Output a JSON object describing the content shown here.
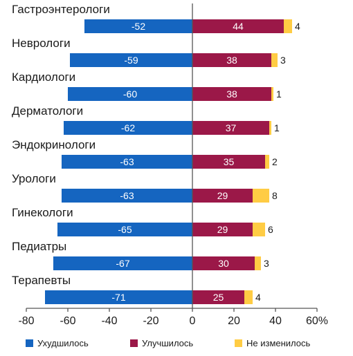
{
  "chart_data": {
    "type": "bar",
    "orientation": "horizontal",
    "stacked": true,
    "categories": [
      "Гастроэнтерологи",
      "Неврологи",
      "Кардиологи",
      "Дерматологи",
      "Эндокринологи",
      "Урологи",
      "Гинекологи",
      "Педиатры",
      "Терапевты"
    ],
    "series": [
      {
        "name": "Ухудшилось",
        "color": "#1565c0",
        "values": [
          -52,
          -59,
          -60,
          -62,
          -63,
          -63,
          -65,
          -67,
          -71
        ]
      },
      {
        "name": "Улучшилось",
        "color": "#9b1848",
        "values": [
          44,
          38,
          38,
          37,
          35,
          29,
          29,
          30,
          25
        ]
      },
      {
        "name": "Не изменилось",
        "color": "#ffcc44",
        "values": [
          4,
          3,
          1,
          1,
          2,
          8,
          6,
          3,
          4
        ]
      }
    ],
    "xlim": [
      -80,
      60
    ],
    "xticks": [
      -80,
      -60,
      -40,
      -20,
      0,
      20,
      40,
      60
    ],
    "xtick_labels": [
      "-80",
      "-60",
      "-40",
      "-20",
      "0",
      "20",
      "40",
      "60%"
    ],
    "xlabel": "",
    "ylabel": "",
    "title": "",
    "grid": false,
    "legend_position": "bottom",
    "axis_color": "#555555"
  }
}
